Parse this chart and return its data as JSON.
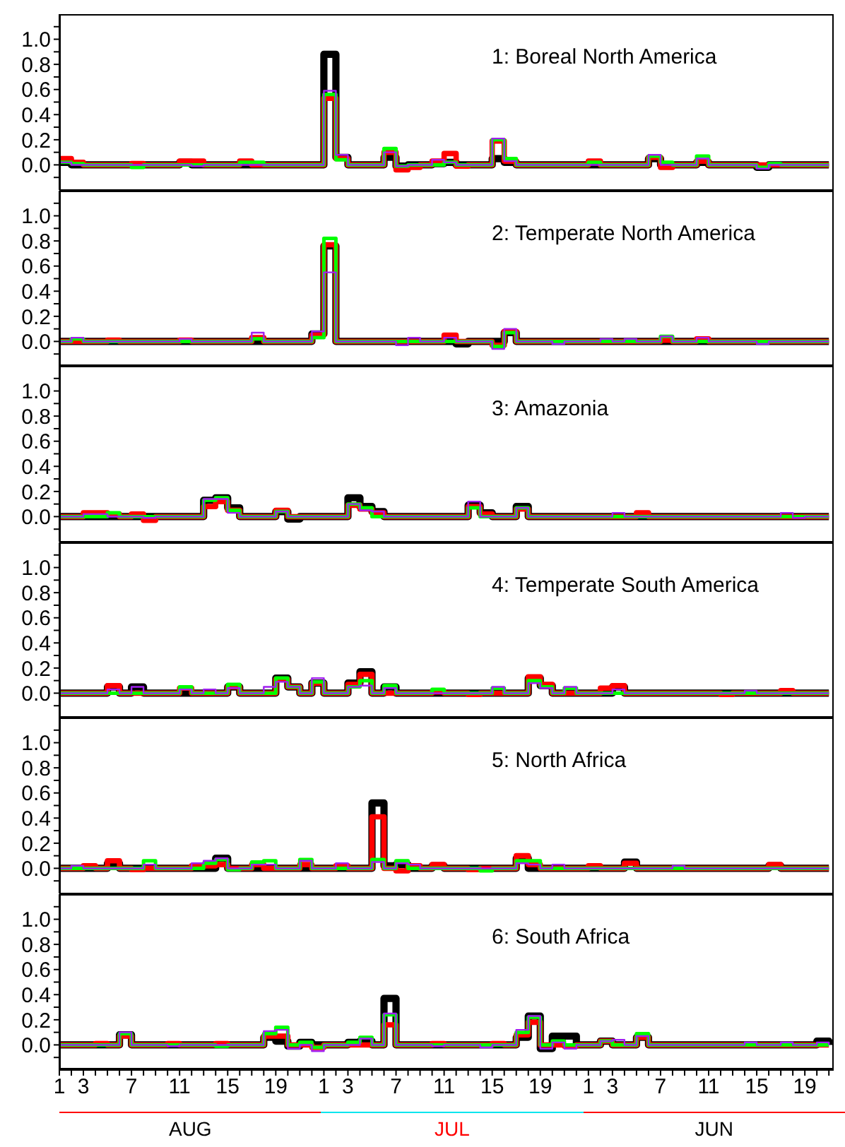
{
  "chart_data": [
    {
      "type": "step",
      "title": "1: Boreal North America",
      "tick_labels": "y",
      "marker": "none",
      "line_style": "solid",
      "legend": false,
      "grid": false,
      "categories": [
        "1",
        null,
        "3",
        null,
        null,
        null,
        "7",
        null,
        null,
        null,
        "11",
        null,
        null,
        null,
        "15",
        null,
        null,
        null,
        "19",
        null,
        null,
        null,
        "1",
        null,
        "3",
        null,
        null,
        null,
        "7",
        null,
        null,
        null,
        "11",
        null,
        null,
        null,
        "15",
        null,
        null,
        null,
        "19",
        null,
        null,
        null,
        "1",
        null,
        "3",
        null,
        null,
        null,
        "7",
        null,
        null,
        null,
        "11",
        null,
        null,
        null,
        "15",
        null,
        null,
        null,
        "19",
        null,
        null
      ],
      "ylim": [
        -0.2,
        1.2
      ],
      "yticks": [
        {
          "value": -0.1,
          "label": null
        },
        {
          "value": 0,
          "label": "0.0"
        },
        {
          "value": 0.1,
          "label": null
        },
        {
          "value": 0.2,
          "label": "0.2"
        },
        {
          "value": 0.3,
          "label": null
        },
        {
          "value": 0.4,
          "label": "0.4"
        },
        {
          "value": 0.5,
          "label": null
        },
        {
          "value": 0.6,
          "label": "0.6"
        },
        {
          "value": 0.7,
          "label": null
        },
        {
          "value": 0.8,
          "label": "0.8"
        },
        {
          "value": 0.9,
          "label": null
        },
        {
          "value": 1.0,
          "label": "1.0"
        },
        {
          "value": 1.1,
          "label": null
        }
      ],
      "series": [
        {
          "color": "#000000",
          "values": [
            0.02,
            0,
            0,
            0,
            0,
            0,
            0,
            0,
            0,
            0,
            0.02,
            0,
            0,
            0,
            0,
            0,
            0,
            0,
            0,
            0,
            0,
            0,
            0.88,
            0.06,
            0,
            0,
            0,
            0.06,
            -0.01,
            0,
            0,
            0.01,
            0.02,
            0,
            0,
            0,
            0.05,
            0.02,
            0,
            0,
            0,
            0,
            0,
            0,
            0,
            0,
            0,
            0,
            0,
            0.05,
            0,
            0,
            0,
            0.02,
            0,
            0,
            0,
            0,
            -0.02,
            0,
            0,
            0,
            0,
            0,
            0
          ]
        },
        {
          "color": "#ff0000",
          "values": [
            0.05,
            0.02,
            0,
            0,
            0,
            0,
            0.01,
            0,
            0,
            0,
            0.03,
            0.03,
            0,
            0,
            0,
            0.03,
            0,
            0,
            0,
            0,
            0,
            0,
            0.53,
            0.05,
            0,
            0,
            0,
            0.1,
            -0.04,
            -0.02,
            0,
            0.03,
            0.09,
            -0.01,
            0,
            0,
            0.19,
            0.03,
            0,
            0,
            0,
            0,
            0,
            0,
            0.03,
            0,
            0,
            0,
            0,
            0.06,
            -0.02,
            0,
            0,
            0.03,
            0,
            0,
            0,
            0,
            0,
            0,
            0,
            0,
            0,
            0,
            0
          ]
        },
        {
          "color": "#00ff00",
          "values": [
            0.02,
            0.01,
            0,
            0,
            0,
            0,
            -0.02,
            0,
            0,
            0,
            0,
            0,
            0,
            0,
            0,
            0.02,
            0.02,
            0,
            0,
            0,
            0,
            0,
            0.56,
            0.04,
            0,
            0,
            0,
            0.13,
            -0.01,
            0,
            0,
            0,
            0.02,
            0,
            0,
            0,
            0.2,
            0.05,
            0,
            0,
            0,
            0,
            0,
            0,
            0.02,
            0,
            0,
            0,
            0,
            0.07,
            0.02,
            0,
            0,
            0.07,
            0,
            0,
            0,
            0,
            -0.02,
            0.01,
            0,
            0,
            0,
            0,
            0
          ]
        },
        {
          "color": "#a020f0",
          "values": [
            0.02,
            0,
            0,
            0,
            0,
            0,
            0,
            0,
            0,
            0,
            0,
            -0.01,
            0,
            0,
            0,
            0,
            0,
            0,
            0,
            0,
            0,
            0,
            0.59,
            0.08,
            0,
            0,
            0,
            0.1,
            -0.01,
            0,
            0,
            0.04,
            0.02,
            0,
            0,
            0,
            0.21,
            0.03,
            0,
            0,
            0,
            0,
            0,
            0,
            0,
            0,
            0,
            0,
            0,
            0.08,
            0,
            0,
            0,
            0.05,
            0,
            0,
            0,
            0,
            -0.03,
            0,
            0,
            0,
            0,
            0,
            0
          ]
        }
      ]
    },
    {
      "type": "step",
      "title": "2: Temperate North America",
      "tick_labels": "y",
      "marker": "none",
      "line_style": "solid",
      "legend": false,
      "grid": false,
      "categories": [
        "1",
        null,
        "3",
        null,
        null,
        null,
        "7",
        null,
        null,
        null,
        "11",
        null,
        null,
        null,
        "15",
        null,
        null,
        null,
        "19",
        null,
        null,
        null,
        "1",
        null,
        "3",
        null,
        null,
        null,
        "7",
        null,
        null,
        null,
        "11",
        null,
        null,
        null,
        "15",
        null,
        null,
        null,
        "19",
        null,
        null,
        null,
        "1",
        null,
        "3",
        null,
        null,
        null,
        "7",
        null,
        null,
        null,
        "11",
        null,
        null,
        null,
        "15",
        null,
        null,
        null,
        "19",
        null,
        null
      ],
      "ylim": [
        -0.2,
        1.2
      ],
      "yticks": [
        {
          "value": -0.1,
          "label": null
        },
        {
          "value": 0,
          "label": "0.0"
        },
        {
          "value": 0.1,
          "label": null
        },
        {
          "value": 0.2,
          "label": "0.2"
        },
        {
          "value": 0.3,
          "label": null
        },
        {
          "value": 0.4,
          "label": "0.4"
        },
        {
          "value": 0.5,
          "label": null
        },
        {
          "value": 0.6,
          "label": "0.6"
        },
        {
          "value": 0.7,
          "label": null
        },
        {
          "value": 0.8,
          "label": "0.8"
        },
        {
          "value": 0.9,
          "label": null
        },
        {
          "value": 1.0,
          "label": "1.0"
        },
        {
          "value": 1.1,
          "label": null
        }
      ],
      "series": [
        {
          "color": "#000000",
          "values": [
            0,
            0,
            0,
            0,
            0,
            0,
            0,
            0,
            0,
            0,
            0,
            0,
            0,
            0,
            0,
            0,
            0,
            0,
            0,
            0,
            0,
            0.06,
            0.76,
            0,
            0,
            0,
            0,
            0,
            0,
            0,
            0,
            0,
            0,
            -0.02,
            0,
            0,
            0,
            0.07,
            0,
            0,
            0,
            0,
            0,
            0,
            0,
            0,
            0,
            0,
            0,
            0,
            0,
            0,
            0,
            0,
            0,
            0,
            0,
            0,
            0,
            0,
            0,
            0,
            0,
            0,
            0
          ]
        },
        {
          "color": "#ff0000",
          "values": [
            0,
            0,
            0,
            0,
            0.01,
            0,
            0,
            0,
            0,
            0,
            0.01,
            0,
            0,
            0,
            0,
            0,
            0.03,
            0,
            0,
            0,
            0,
            0.05,
            0.77,
            0,
            0,
            0,
            0,
            0,
            0,
            0,
            0,
            0,
            0.05,
            0,
            0,
            0,
            -0.03,
            0.08,
            0,
            0,
            0,
            0,
            0,
            0,
            0,
            0,
            0,
            0,
            0,
            0,
            0.01,
            0,
            0,
            0.02,
            0,
            0,
            0,
            0,
            0,
            0,
            0,
            0,
            0,
            0,
            0
          ]
        },
        {
          "color": "#00ff00",
          "values": [
            0,
            0.02,
            0,
            0,
            0,
            0,
            0,
            0,
            0,
            0,
            0,
            0,
            0,
            0,
            0,
            0,
            0.02,
            0,
            0,
            0,
            0,
            0.03,
            0.82,
            0,
            0,
            0,
            0,
            0,
            0,
            0,
            0,
            0,
            0,
            0,
            0,
            0,
            -0.04,
            0.07,
            0,
            0,
            0,
            0,
            0,
            0,
            0,
            0,
            0,
            0,
            0,
            0,
            0.04,
            0,
            0,
            0,
            0,
            0,
            0,
            0,
            0,
            0,
            0,
            0,
            0,
            0,
            0
          ]
        },
        {
          "color": "#a020f0",
          "values": [
            0,
            0.03,
            0,
            0,
            0,
            0,
            0,
            0,
            0,
            0,
            0.02,
            0,
            0,
            0,
            0,
            0,
            0.07,
            0,
            0,
            0,
            0,
            0.08,
            0.55,
            0,
            0,
            0,
            0,
            0,
            -0.03,
            0.03,
            0,
            0,
            0.03,
            0,
            0,
            0,
            -0.06,
            0.1,
            0,
            0,
            0,
            -0.02,
            0,
            0,
            0,
            0.02,
            0,
            0.02,
            0,
            0,
            0.04,
            0,
            0,
            0.03,
            0,
            0,
            0,
            0,
            -0.02,
            0,
            0,
            0,
            0,
            0,
            0
          ]
        }
      ]
    },
    {
      "type": "step",
      "title": "3: Amazonia",
      "tick_labels": "y",
      "marker": "none",
      "line_style": "solid",
      "legend": false,
      "grid": false,
      "categories": [
        "1",
        null,
        "3",
        null,
        null,
        null,
        "7",
        null,
        null,
        null,
        "11",
        null,
        null,
        null,
        "15",
        null,
        null,
        null,
        "19",
        null,
        null,
        null,
        "1",
        null,
        "3",
        null,
        null,
        null,
        "7",
        null,
        null,
        null,
        "11",
        null,
        null,
        null,
        "15",
        null,
        null,
        null,
        "19",
        null,
        null,
        null,
        "1",
        null,
        "3",
        null,
        null,
        null,
        "7",
        null,
        null,
        null,
        "11",
        null,
        null,
        null,
        "15",
        null,
        null,
        null,
        "19",
        null,
        null
      ],
      "ylim": [
        -0.2,
        1.2
      ],
      "yticks": [
        {
          "value": -0.1,
          "label": null
        },
        {
          "value": 0,
          "label": "0.0"
        },
        {
          "value": 0.1,
          "label": null
        },
        {
          "value": 0.2,
          "label": "0.2"
        },
        {
          "value": 0.3,
          "label": null
        },
        {
          "value": 0.4,
          "label": "0.4"
        },
        {
          "value": 0.5,
          "label": null
        },
        {
          "value": 0.6,
          "label": "0.6"
        },
        {
          "value": 0.7,
          "label": null
        },
        {
          "value": 0.8,
          "label": "0.8"
        },
        {
          "value": 0.9,
          "label": null
        },
        {
          "value": 1.0,
          "label": "1.0"
        },
        {
          "value": 1.1,
          "label": null
        }
      ],
      "series": [
        {
          "color": "#000000",
          "values": [
            0,
            0,
            0,
            0,
            0,
            0,
            0,
            0,
            0,
            0,
            0,
            0,
            0.13,
            0.15,
            0.07,
            0,
            0,
            0,
            0.04,
            -0.02,
            0,
            0,
            0,
            0,
            0.15,
            0.08,
            0.04,
            0,
            0,
            0,
            0,
            0,
            0,
            0,
            0.09,
            0.03,
            0,
            0,
            0.08,
            0,
            0,
            0,
            0,
            0,
            0,
            0,
            0,
            0,
            0,
            0,
            0,
            0,
            0,
            0,
            0,
            0,
            0,
            0,
            0,
            0,
            0,
            0,
            0,
            0,
            0
          ]
        },
        {
          "color": "#ff0000",
          "values": [
            0,
            0,
            0.03,
            0.03,
            0.02,
            0,
            0.02,
            -0.03,
            0,
            0,
            0,
            0,
            0.08,
            0.12,
            0.05,
            0,
            0,
            0,
            0.05,
            0,
            0,
            0,
            0,
            0,
            0.09,
            0.06,
            0.03,
            0,
            0,
            0,
            0,
            0,
            0,
            0,
            0.08,
            0.02,
            0,
            0,
            0.06,
            0,
            0,
            0,
            0,
            0,
            0,
            0,
            0,
            0,
            0.03,
            0,
            0,
            0,
            0,
            0,
            0,
            0,
            0,
            0,
            0,
            0,
            0,
            0,
            0,
            0,
            0
          ]
        },
        {
          "color": "#00ff00",
          "values": [
            0,
            0,
            0,
            0,
            0.03,
            0,
            0,
            0,
            0,
            0,
            0,
            0,
            0.13,
            0.15,
            0.05,
            0,
            0,
            0,
            0.04,
            0,
            0,
            0,
            0,
            0,
            0.1,
            0.07,
            0,
            0,
            0,
            0,
            0,
            0,
            0,
            0,
            0.07,
            0,
            0,
            0,
            0.07,
            0,
            0,
            0,
            0,
            0,
            0,
            0,
            0,
            0,
            0,
            0,
            0,
            0,
            0,
            0,
            0,
            0,
            0,
            0,
            0,
            0,
            0,
            0,
            0,
            0,
            0
          ]
        },
        {
          "color": "#a020f0",
          "values": [
            0,
            0,
            0.02,
            0.02,
            0,
            0,
            0,
            -0.01,
            0,
            0,
            0,
            0,
            0.14,
            0.14,
            0.03,
            0,
            0,
            0,
            0.04,
            0,
            0,
            0,
            0,
            0,
            0.1,
            0.05,
            0.04,
            0,
            0,
            0,
            0,
            0,
            0,
            0,
            0.12,
            0,
            0,
            0,
            0.07,
            0,
            0,
            0,
            0,
            0,
            0,
            0,
            0.03,
            0,
            0,
            0,
            0,
            0,
            0,
            0,
            0,
            0,
            0,
            0,
            0,
            0,
            0.03,
            -0.01,
            0,
            0,
            0
          ]
        }
      ]
    },
    {
      "type": "step",
      "title": "4: Temperate South America",
      "tick_labels": "y",
      "marker": "none",
      "line_style": "solid",
      "legend": false,
      "grid": false,
      "categories": [
        "1",
        null,
        "3",
        null,
        null,
        null,
        "7",
        null,
        null,
        null,
        "11",
        null,
        null,
        null,
        "15",
        null,
        null,
        null,
        "19",
        null,
        null,
        null,
        "1",
        null,
        "3",
        null,
        null,
        null,
        "7",
        null,
        null,
        null,
        "11",
        null,
        null,
        null,
        "15",
        null,
        null,
        null,
        "19",
        null,
        null,
        null,
        "1",
        null,
        "3",
        null,
        null,
        null,
        "7",
        null,
        null,
        null,
        "11",
        null,
        null,
        null,
        "15",
        null,
        null,
        null,
        "19",
        null,
        null
      ],
      "ylim": [
        -0.2,
        1.2
      ],
      "yticks": [
        {
          "value": -0.1,
          "label": null
        },
        {
          "value": 0,
          "label": "0.0"
        },
        {
          "value": 0.1,
          "label": null
        },
        {
          "value": 0.2,
          "label": "0.2"
        },
        {
          "value": 0.3,
          "label": null
        },
        {
          "value": 0.4,
          "label": "0.4"
        },
        {
          "value": 0.5,
          "label": null
        },
        {
          "value": 0.6,
          "label": "0.6"
        },
        {
          "value": 0.7,
          "label": null
        },
        {
          "value": 0.8,
          "label": "0.8"
        },
        {
          "value": 0.9,
          "label": null
        },
        {
          "value": 1.0,
          "label": "1.0"
        },
        {
          "value": 1.1,
          "label": null
        }
      ],
      "series": [
        {
          "color": "#000000",
          "values": [
            0,
            0,
            0,
            0,
            0.05,
            0,
            0.05,
            0,
            0,
            0,
            0,
            0,
            0,
            0,
            0.05,
            0,
            0,
            0,
            0.12,
            0.05,
            0,
            0.08,
            0,
            0,
            0.08,
            0.17,
            0,
            0.05,
            0,
            0,
            0,
            0,
            0,
            0,
            0,
            0,
            0,
            0,
            0,
            0.12,
            0.06,
            0,
            0,
            0,
            0,
            0,
            0.05,
            0,
            0,
            0,
            0,
            0,
            0,
            0,
            0,
            0,
            0,
            0,
            0,
            0,
            0,
            0,
            0,
            0,
            0
          ]
        },
        {
          "color": "#ff0000",
          "values": [
            0,
            0,
            0,
            0,
            0.06,
            0,
            0,
            0,
            0,
            0,
            0.04,
            0,
            0,
            0,
            0.05,
            0,
            0,
            0,
            0.11,
            0.05,
            0,
            0.08,
            0,
            0,
            0.07,
            0.15,
            0,
            0,
            0,
            0,
            0,
            0.01,
            0,
            0,
            -0.01,
            0,
            0,
            0,
            0,
            0.13,
            0.07,
            0,
            0,
            0,
            0,
            0.04,
            0.06,
            0,
            0,
            0,
            0,
            0,
            0,
            0,
            0,
            -0.01,
            0,
            0,
            0,
            0,
            0.02,
            0,
            0,
            0,
            0
          ]
        },
        {
          "color": "#00ff00",
          "values": [
            0,
            0,
            0,
            0,
            0,
            0,
            0,
            0,
            0,
            0,
            0.05,
            0,
            0,
            0,
            0.07,
            0,
            0,
            0,
            0.12,
            0.05,
            0,
            0.09,
            0,
            0,
            0.05,
            0.1,
            0,
            0.06,
            0,
            0,
            0,
            0.03,
            0,
            0,
            0,
            0,
            0.04,
            0,
            0,
            0.1,
            0.05,
            0,
            0.04,
            0,
            0,
            0,
            0,
            0,
            0,
            0,
            0,
            0,
            0,
            0,
            0,
            0,
            0,
            0,
            0,
            0,
            0,
            0,
            0,
            0,
            0
          ]
        },
        {
          "color": "#a020f0",
          "values": [
            0,
            0,
            0,
            0,
            0.03,
            0,
            0.05,
            0,
            0,
            0,
            0.03,
            0,
            0.03,
            0,
            0.04,
            0,
            0,
            0.05,
            0.09,
            0.05,
            0,
            0.12,
            0,
            0,
            0.05,
            0.06,
            0,
            0.04,
            0,
            0,
            0,
            0,
            0,
            0,
            0,
            0,
            0.05,
            0,
            0,
            0.08,
            0.04,
            0,
            0.05,
            0,
            0,
            0,
            0.03,
            0,
            0,
            0,
            0,
            0,
            0,
            0,
            0,
            0,
            0,
            0.02,
            0,
            0,
            0,
            0,
            0,
            0,
            0
          ]
        }
      ]
    },
    {
      "type": "step",
      "title": "5: North Africa",
      "tick_labels": "y",
      "marker": "none",
      "line_style": "solid",
      "legend": false,
      "grid": false,
      "categories": [
        "1",
        null,
        "3",
        null,
        null,
        null,
        "7",
        null,
        null,
        null,
        "11",
        null,
        null,
        null,
        "15",
        null,
        null,
        null,
        "19",
        null,
        null,
        null,
        "1",
        null,
        "3",
        null,
        null,
        null,
        "7",
        null,
        null,
        null,
        "11",
        null,
        null,
        null,
        "15",
        null,
        null,
        null,
        "19",
        null,
        null,
        null,
        "1",
        null,
        "3",
        null,
        null,
        null,
        "7",
        null,
        null,
        null,
        "11",
        null,
        null,
        null,
        "15",
        null,
        null,
        null,
        "19",
        null,
        null
      ],
      "ylim": [
        -0.2,
        1.2
      ],
      "yticks": [
        {
          "value": -0.1,
          "label": null
        },
        {
          "value": 0,
          "label": "0.0"
        },
        {
          "value": 0.1,
          "label": null
        },
        {
          "value": 0.2,
          "label": "0.2"
        },
        {
          "value": 0.3,
          "label": null
        },
        {
          "value": 0.4,
          "label": "0.4"
        },
        {
          "value": 0.5,
          "label": null
        },
        {
          "value": 0.6,
          "label": "0.6"
        },
        {
          "value": 0.7,
          "label": null
        },
        {
          "value": 0.8,
          "label": "0.8"
        },
        {
          "value": 0.9,
          "label": null
        },
        {
          "value": 1.0,
          "label": "1.0"
        },
        {
          "value": 1.1,
          "label": null
        }
      ],
      "series": [
        {
          "color": "#000000",
          "values": [
            0,
            0,
            0,
            0,
            0.04,
            0,
            0,
            0,
            0,
            0,
            0,
            0,
            0,
            0.08,
            0,
            0,
            0,
            0,
            0,
            0,
            0,
            0,
            0,
            0,
            0,
            0,
            0.52,
            0.02,
            0.03,
            0,
            0,
            0.02,
            0,
            0,
            0,
            0,
            0,
            0,
            0.08,
            0,
            0,
            0,
            0,
            0,
            0,
            0,
            0,
            0.05,
            0,
            0,
            0,
            0,
            0,
            0,
            0,
            0,
            0,
            0,
            0,
            0.02,
            0,
            0,
            0,
            0,
            0
          ]
        },
        {
          "color": "#ff0000",
          "values": [
            0,
            0,
            0.02,
            0,
            0.06,
            0,
            -0.01,
            0,
            0,
            0,
            0,
            0.02,
            0.02,
            0.03,
            0,
            0,
            0.03,
            0,
            0,
            0,
            0.03,
            0,
            0,
            0.02,
            0,
            0,
            0.41,
            0,
            -0.02,
            0.02,
            0,
            0.03,
            0,
            0,
            -0.01,
            0,
            0,
            0,
            0.1,
            0.03,
            0,
            0,
            0,
            0,
            0.02,
            0,
            0,
            0.04,
            0,
            0,
            0,
            0,
            0,
            0,
            0,
            0,
            0,
            0,
            0,
            0.03,
            0,
            0,
            0,
            0,
            0
          ]
        },
        {
          "color": "#00ff00",
          "values": [
            0,
            0,
            0,
            0,
            0,
            0,
            0,
            0.06,
            0,
            0,
            0,
            0,
            0.04,
            0.07,
            -0.01,
            0,
            0.05,
            0.06,
            0,
            0,
            0.07,
            0,
            0,
            0,
            0,
            0,
            0.07,
            0,
            0.06,
            0,
            0,
            0,
            0,
            0,
            0,
            -0.02,
            0,
            0,
            0.06,
            0.06,
            0,
            0,
            0,
            0,
            0,
            0,
            0,
            0,
            0,
            0,
            0,
            0,
            0,
            0,
            0,
            0,
            0,
            0,
            0,
            0,
            0,
            0,
            0,
            0,
            0
          ]
        },
        {
          "color": "#a020f0",
          "values": [
            0,
            0.02,
            0,
            0,
            0,
            0,
            0,
            0.03,
            0,
            0,
            0,
            0.04,
            0.06,
            0.08,
            0,
            0,
            0.03,
            0.03,
            0,
            0,
            0.06,
            0,
            0,
            0.04,
            0,
            0,
            0.05,
            0,
            0.04,
            0.03,
            0,
            0,
            0,
            0,
            0,
            0,
            0,
            0,
            0.04,
            0.03,
            0,
            0.03,
            0,
            0,
            0,
            0,
            0,
            0,
            0,
            0,
            0,
            0.02,
            0,
            0,
            0,
            0,
            0,
            0,
            0,
            0,
            0,
            0,
            0,
            0,
            0
          ]
        }
      ]
    },
    {
      "type": "step",
      "title": "6: South Africa",
      "marker": "none",
      "line_style": "solid",
      "legend": false,
      "grid": false,
      "annotations": [
        "AUG",
        "JUL",
        "JUN"
      ],
      "categories": [
        "1",
        null,
        "3",
        null,
        null,
        null,
        "7",
        null,
        null,
        null,
        "11",
        null,
        null,
        null,
        "15",
        null,
        null,
        null,
        "19",
        null,
        null,
        null,
        "1",
        null,
        "3",
        null,
        null,
        null,
        "7",
        null,
        null,
        null,
        "11",
        null,
        null,
        null,
        "15",
        null,
        null,
        null,
        "19",
        null,
        null,
        null,
        "1",
        null,
        "3",
        null,
        null,
        null,
        "7",
        null,
        null,
        null,
        "11",
        null,
        null,
        null,
        "15",
        null,
        null,
        null,
        "19",
        null,
        null
      ],
      "ylim": [
        -0.2,
        1.2
      ],
      "yticks": [
        {
          "value": -0.1,
          "label": null
        },
        {
          "value": 0,
          "label": "0.0"
        },
        {
          "value": 0.1,
          "label": null
        },
        {
          "value": 0.2,
          "label": "0.2"
        },
        {
          "value": 0.3,
          "label": null
        },
        {
          "value": 0.4,
          "label": "0.4"
        },
        {
          "value": 0.5,
          "label": null
        },
        {
          "value": 0.6,
          "label": "0.6"
        },
        {
          "value": 0.7,
          "label": null
        },
        {
          "value": 0.8,
          "label": "0.8"
        },
        {
          "value": 0.9,
          "label": null
        },
        {
          "value": 1.0,
          "label": "1.0"
        },
        {
          "value": 1.1,
          "label": null
        }
      ],
      "series": [
        {
          "color": "#000000",
          "values": [
            0,
            0,
            0,
            0,
            0,
            0.08,
            0,
            0,
            0,
            0,
            0,
            0,
            0,
            0,
            0,
            0,
            0,
            0.06,
            0.03,
            -0.01,
            0.02,
            0,
            0,
            0,
            0.02,
            0.03,
            0,
            0.37,
            0,
            0,
            0,
            0,
            0,
            0,
            0,
            0,
            0,
            0,
            0.06,
            0.23,
            -0.03,
            0.07,
            0.07,
            0,
            0,
            0.03,
            0,
            0,
            0.06,
            0,
            0,
            0,
            0,
            0,
            0,
            0,
            0,
            0,
            0,
            0,
            0,
            0,
            0,
            0.03,
            0
          ]
        },
        {
          "color": "#ff0000",
          "values": [
            0,
            0,
            0,
            0.01,
            0,
            0.07,
            0,
            0,
            0,
            0.01,
            0,
            0,
            0,
            0.01,
            0,
            0,
            0,
            0.07,
            0.07,
            0,
            0,
            -0.02,
            0,
            0,
            0,
            0,
            0,
            0.16,
            0,
            0,
            0,
            0.01,
            0,
            0,
            0,
            0,
            0.01,
            0,
            0.08,
            0.18,
            0,
            0,
            -0.01,
            0,
            0,
            0.03,
            0,
            0,
            0.06,
            0,
            0,
            0,
            0,
            0,
            0,
            0,
            0,
            0,
            0,
            0,
            0,
            0,
            0,
            0,
            0
          ]
        },
        {
          "color": "#00ff00",
          "values": [
            0,
            0,
            0,
            0,
            0,
            0.09,
            0,
            0,
            0,
            0,
            0,
            0,
            0,
            -0.01,
            0,
            0,
            0,
            0.09,
            0.14,
            0,
            0.02,
            -0.02,
            0,
            0,
            0.02,
            0.06,
            0,
            0.24,
            0,
            0,
            0,
            0,
            0,
            0,
            0,
            0,
            0,
            0,
            0.1,
            0.22,
            0,
            0.03,
            0,
            0,
            0,
            0.03,
            0,
            0,
            0.09,
            0,
            0,
            0,
            0,
            0,
            0,
            0,
            0,
            0,
            0,
            0,
            0,
            0,
            0,
            0,
            0
          ]
        },
        {
          "color": "#a020f0",
          "values": [
            0,
            0,
            0,
            0,
            0,
            0.1,
            0,
            0,
            0,
            -0.01,
            0,
            0,
            0,
            0,
            0,
            0,
            0,
            0.11,
            0.12,
            -0.03,
            0,
            -0.05,
            0,
            0,
            0,
            0.05,
            0,
            0.25,
            0,
            0,
            0,
            -0.01,
            0,
            0,
            0,
            -0.02,
            0,
            0,
            0.12,
            0.23,
            -0.03,
            0.02,
            -0.03,
            0,
            0,
            0.03,
            0.04,
            0,
            0.07,
            0,
            0,
            0,
            0,
            0,
            0,
            0,
            0,
            0.02,
            0,
            0,
            0.02,
            0,
            0,
            0.02,
            0
          ]
        }
      ]
    }
  ]
}
